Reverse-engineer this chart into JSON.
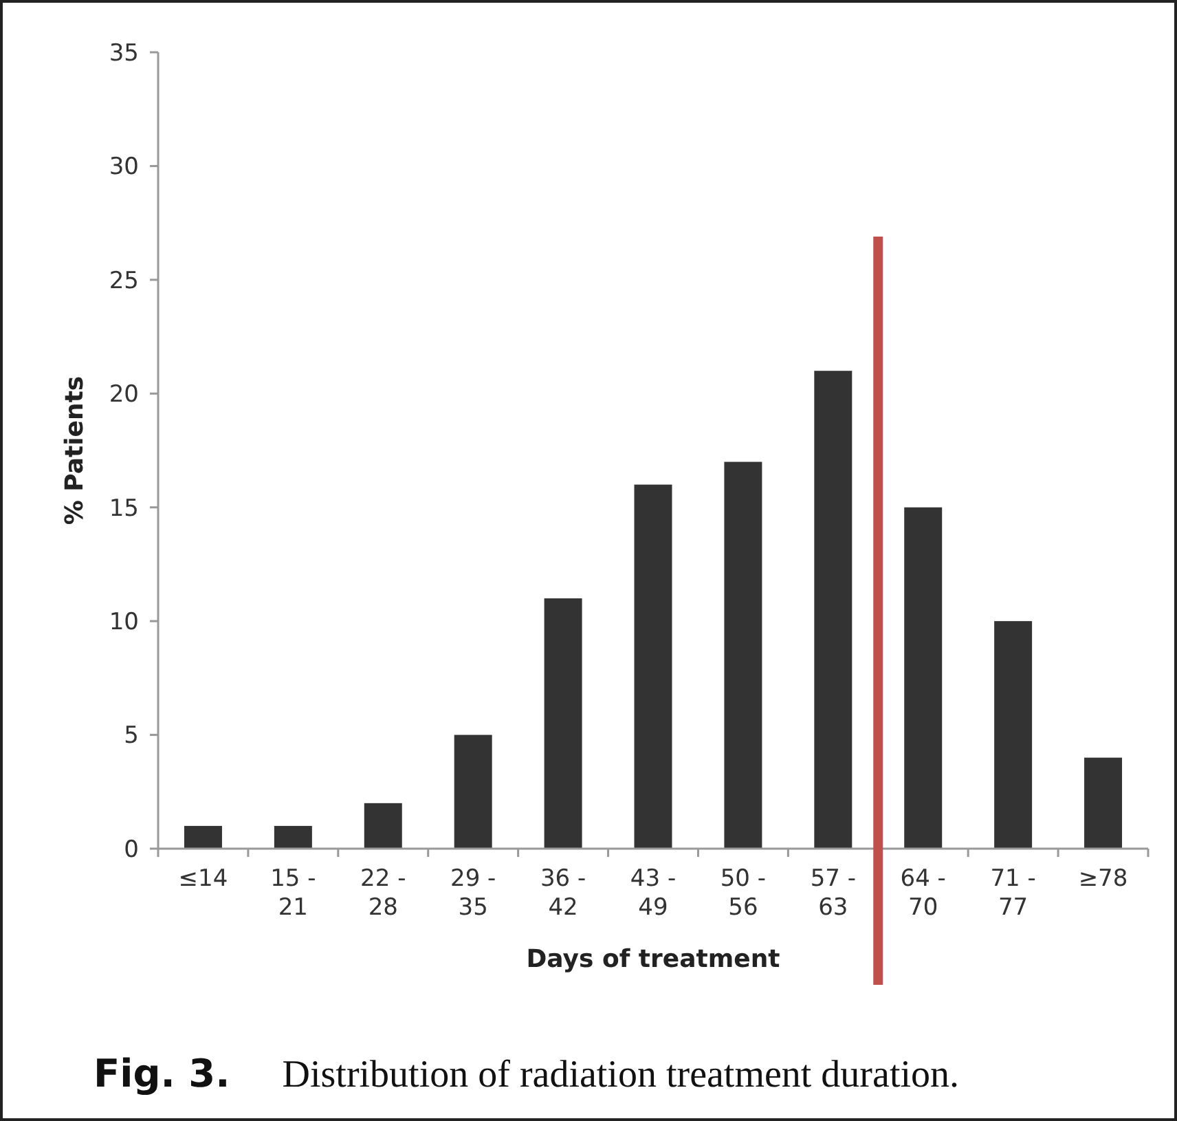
{
  "chart_data": {
    "type": "bar",
    "xlabel": "Days of treatment",
    "ylabel": "% Patients",
    "categories": [
      "≤14",
      "15 - 21",
      "22 - 28",
      "29 - 35",
      "36 - 42",
      "43 - 49",
      "50 - 56",
      "57 - 63",
      "64 - 70",
      "71 - 77",
      "≥78"
    ],
    "values": [
      1,
      1,
      2,
      5,
      11,
      16,
      17,
      21,
      15,
      10,
      4
    ],
    "color": "#333333",
    "ylim": [
      0,
      35
    ],
    "yticks": [
      0,
      5,
      10,
      15,
      20,
      25,
      30,
      35
    ],
    "grid": false,
    "ref_lines": [
      {
        "axis": "x",
        "value": "64 - 70",
        "color": "#c0504d",
        "line_style": "solid"
      }
    ],
    "annotations": [
      "Fig. 3.",
      "Distribution of radiation treatment duration."
    ]
  }
}
